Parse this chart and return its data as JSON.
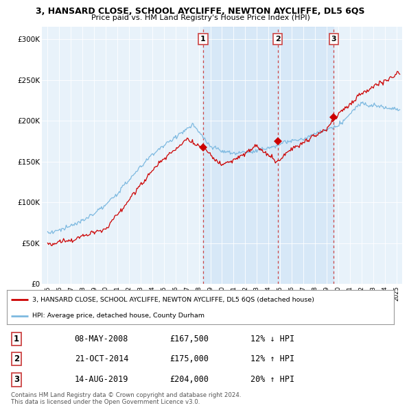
{
  "title": "3, HANSARD CLOSE, SCHOOL AYCLIFFE, NEWTON AYCLIFFE, DL5 6QS",
  "subtitle": "Price paid vs. HM Land Registry's House Price Index (HPI)",
  "legend_line1": "3, HANSARD CLOSE, SCHOOL AYCLIFFE, NEWTON AYCLIFFE, DL5 6QS (detached house)",
  "legend_line2": "HPI: Average price, detached house, County Durham",
  "table_rows": [
    [
      "1",
      "08-MAY-2008",
      "£167,500",
      "12% ↓ HPI"
    ],
    [
      "2",
      "21-OCT-2014",
      "£175,000",
      "12% ↑ HPI"
    ],
    [
      "3",
      "14-AUG-2019",
      "£204,000",
      "20% ↑ HPI"
    ]
  ],
  "footer": "Contains HM Land Registry data © Crown copyright and database right 2024.\nThis data is licensed under the Open Government Licence v3.0.",
  "sale_dates": [
    2008.37,
    2014.8,
    2019.62
  ],
  "sale_prices": [
    167500,
    175000,
    204000
  ],
  "sale_labels": [
    "1",
    "2",
    "3"
  ],
  "hpi_color": "#7db9e0",
  "hpi_fill": "#d0e5f5",
  "sale_color": "#cc0000",
  "dashed_color": "#cc4444",
  "background_chart": "#e8f2fa",
  "background_white": "#ffffff",
  "ylim": [
    0,
    315000
  ],
  "xlim_start": 1994.5,
  "xlim_end": 2025.5
}
